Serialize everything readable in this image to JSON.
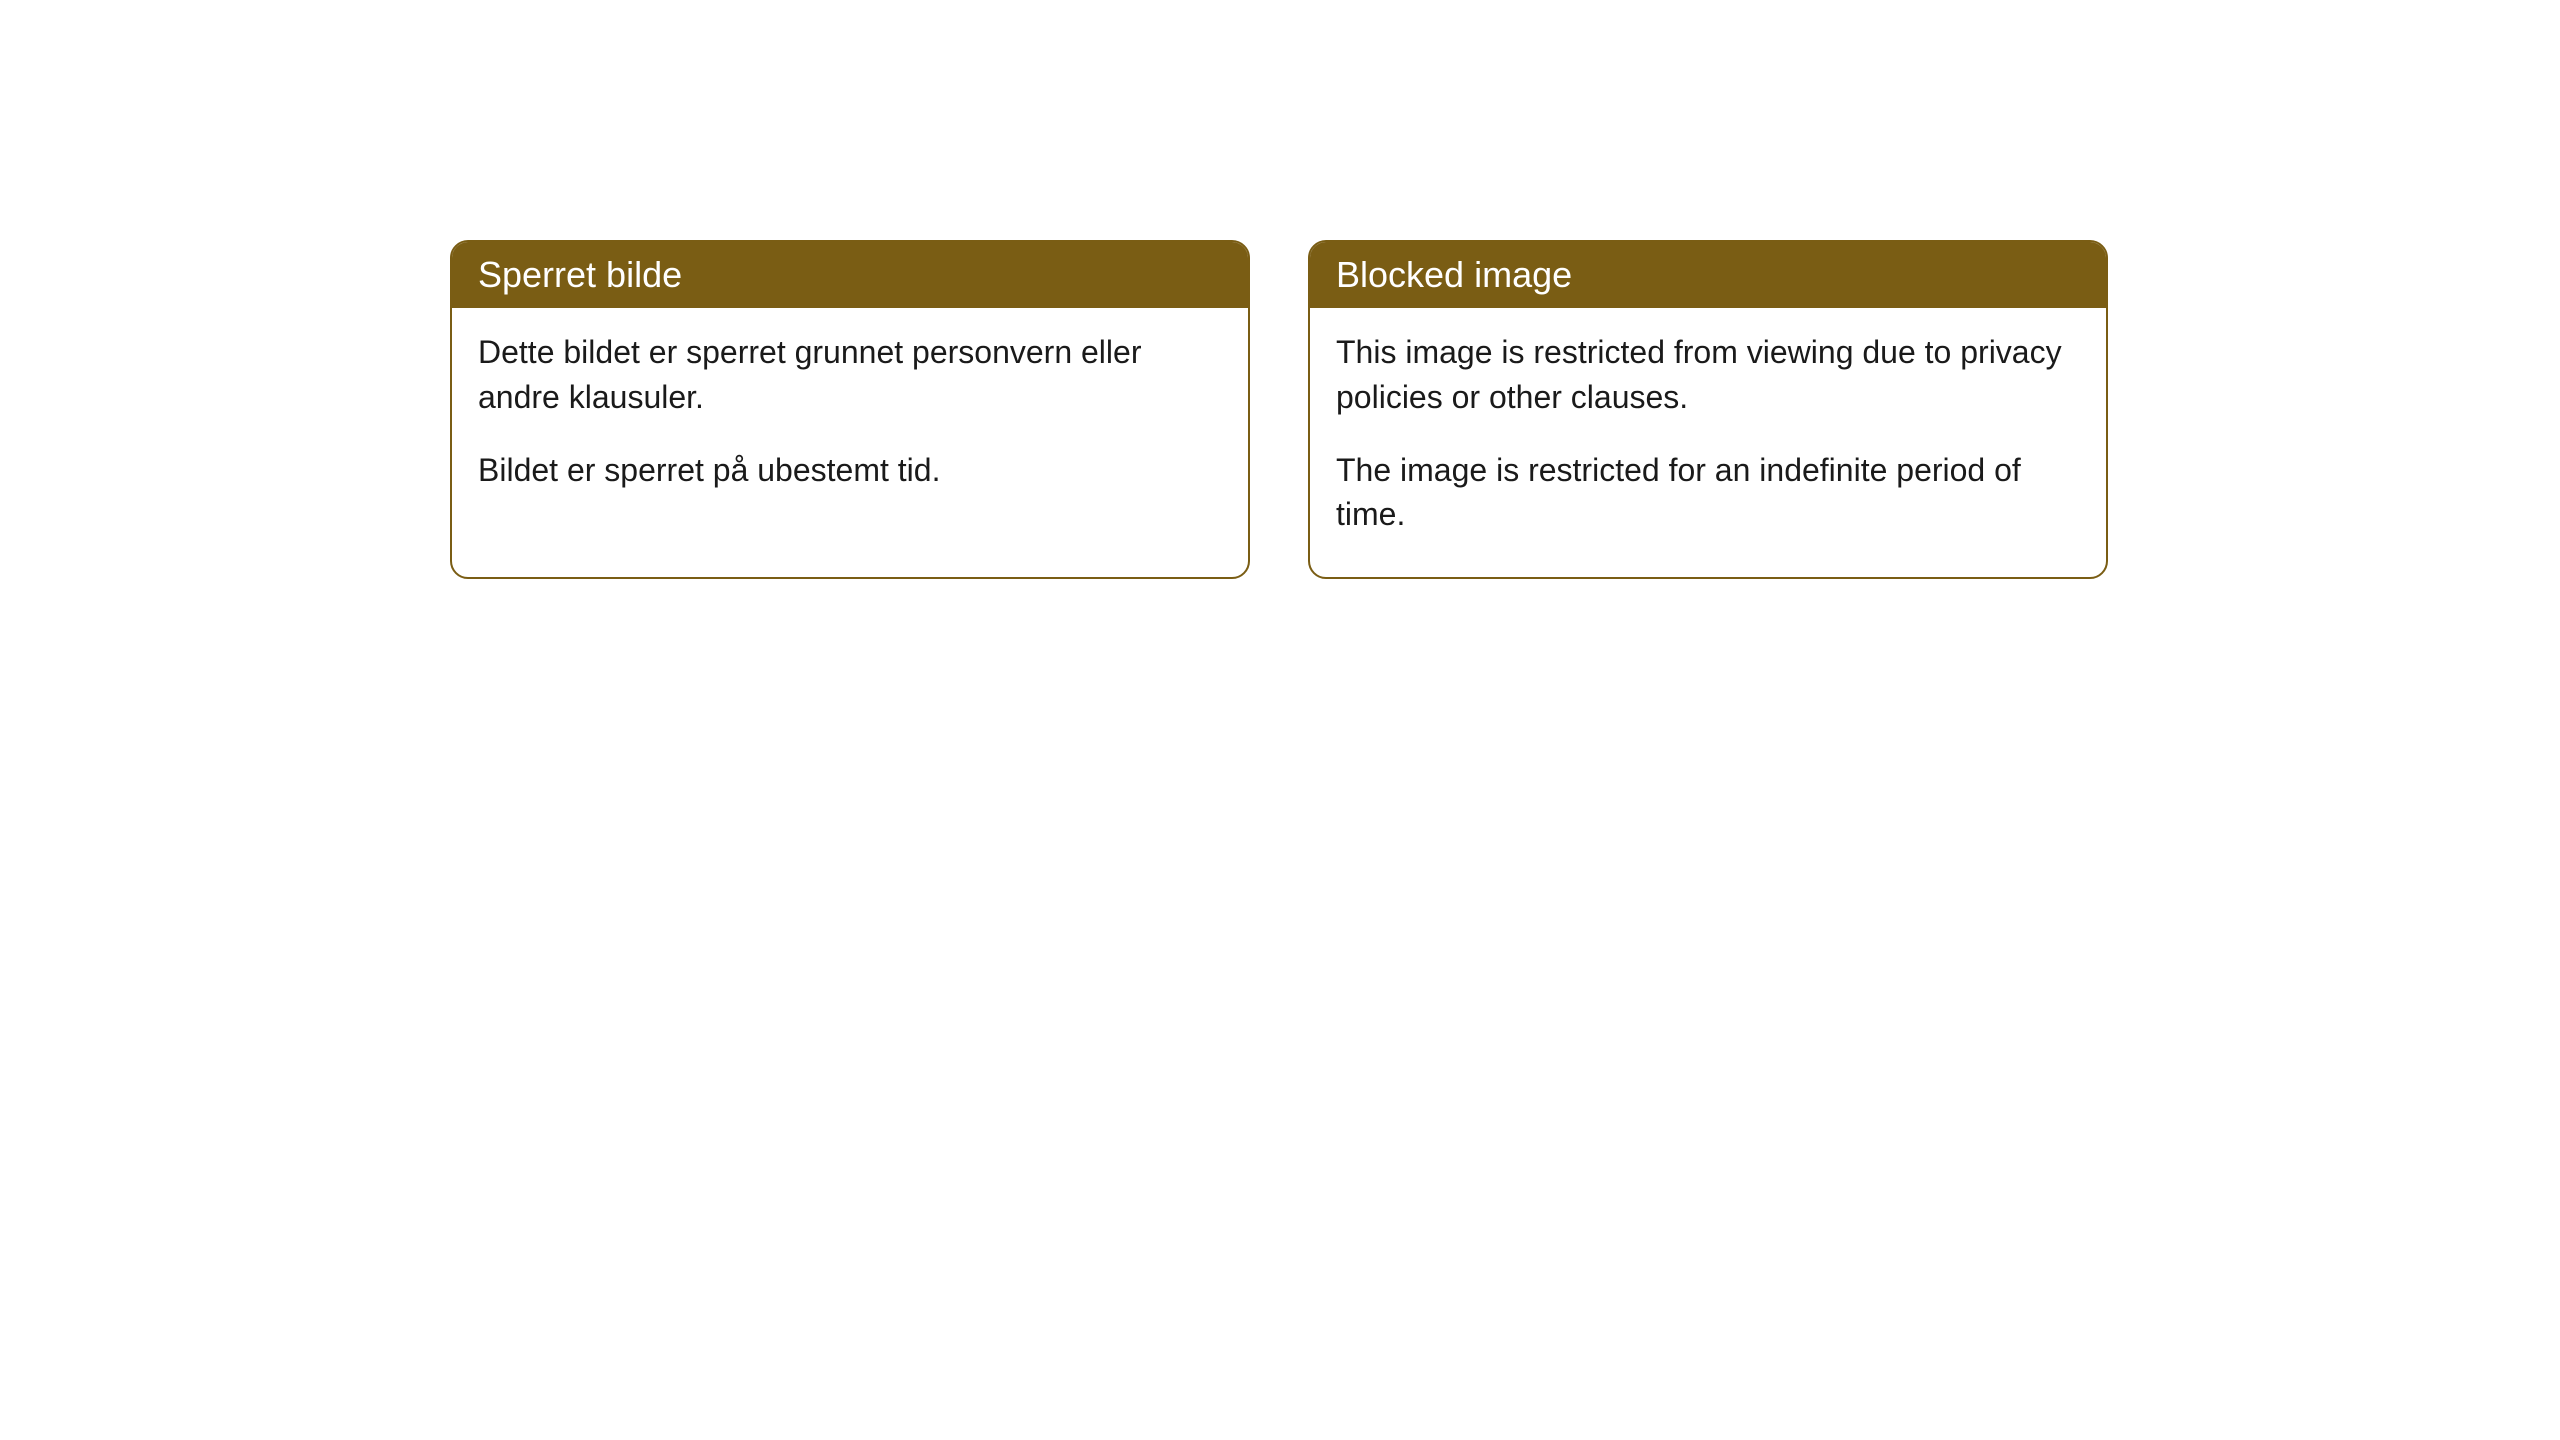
{
  "cards": [
    {
      "title": "Sperret bilde",
      "paragraph1": "Dette bildet er sperret grunnet personvern eller andre klausuler.",
      "paragraph2": "Bildet er sperret på ubestemt tid."
    },
    {
      "title": "Blocked image",
      "paragraph1": "This image is restricted from viewing due to privacy policies or other clauses.",
      "paragraph2": "The image is restricted for an indefinite period of time."
    }
  ],
  "styling": {
    "header_background_color": "#7a5d14",
    "header_text_color": "#ffffff",
    "border_color": "#7a5d14",
    "body_background_color": "#ffffff",
    "body_text_color": "#1a1a1a",
    "border_radius": 18,
    "header_font_size": 36,
    "body_font_size": 32
  }
}
